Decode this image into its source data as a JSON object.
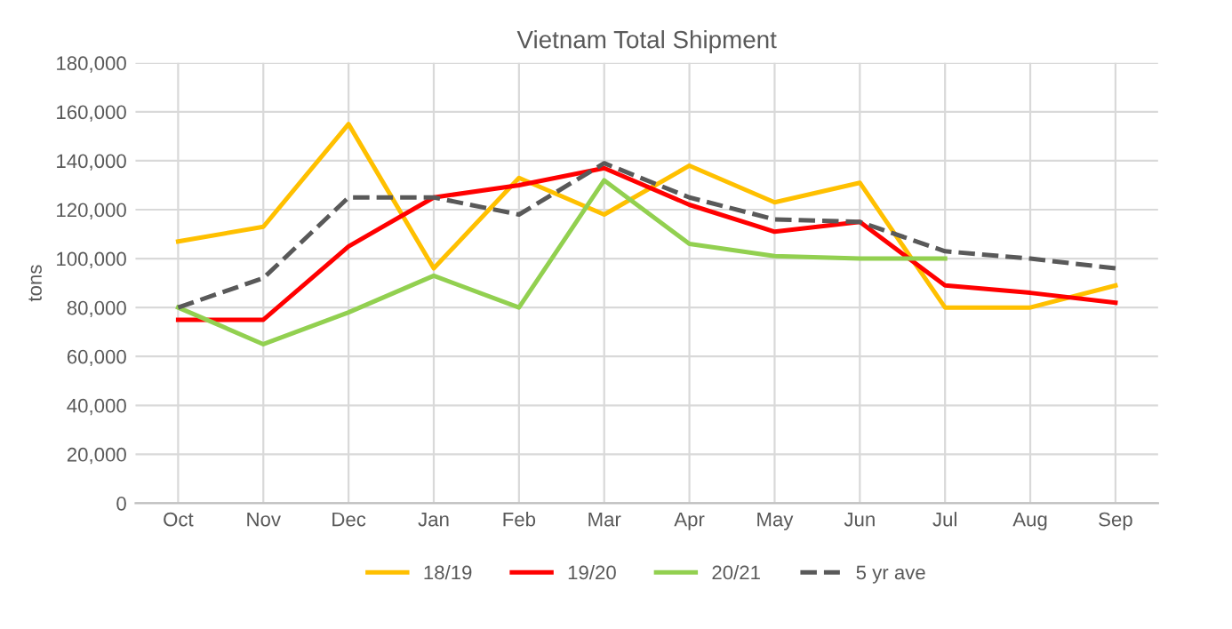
{
  "chart_data": {
    "type": "line",
    "title": "Vietnam Total Shipment",
    "ylabel": "tons",
    "categories": [
      "Oct",
      "Nov",
      "Dec",
      "Jan",
      "Feb",
      "Mar",
      "Apr",
      "May",
      "Jun",
      "Jul",
      "Aug",
      "Sep"
    ],
    "series": [
      {
        "name": "18/19",
        "color": "#ffc000",
        "values": [
          107000,
          113000,
          155000,
          96000,
          133000,
          118000,
          138000,
          123000,
          131000,
          80000,
          80000,
          89000
        ]
      },
      {
        "name": "19/20",
        "color": "#ff0000",
        "values": [
          75000,
          75000,
          105000,
          125000,
          130000,
          137000,
          122000,
          111000,
          115000,
          89000,
          86000,
          82000
        ]
      },
      {
        "name": "20/21",
        "color": "#92d050",
        "values": [
          80000,
          65000,
          78000,
          93000,
          80000,
          132000,
          106000,
          101000,
          100000,
          100000,
          null,
          null
        ]
      },
      {
        "name": "5 yr ave",
        "color": "#595959",
        "line_style": "dashed",
        "values": [
          80000,
          92000,
          125000,
          125000,
          118000,
          139000,
          125000,
          116000,
          115000,
          103000,
          100000,
          96000
        ]
      }
    ],
    "ylim": [
      0,
      180000
    ],
    "yticks": [
      {
        "value": 0,
        "label": "0"
      },
      {
        "value": 20000,
        "label": "20,000"
      },
      {
        "value": 40000,
        "label": "40,000"
      },
      {
        "value": 60000,
        "label": "60,000"
      },
      {
        "value": 80000,
        "label": "80,000"
      },
      {
        "value": 100000,
        "label": "100,000"
      },
      {
        "value": 120000,
        "label": "120,000"
      },
      {
        "value": 140000,
        "label": "140,000"
      },
      {
        "value": 160000,
        "label": "160,000"
      },
      {
        "value": 180000,
        "label": "180,000"
      }
    ],
    "grid": true,
    "legend": "bottom",
    "marker": "none",
    "line_style": "solid"
  }
}
